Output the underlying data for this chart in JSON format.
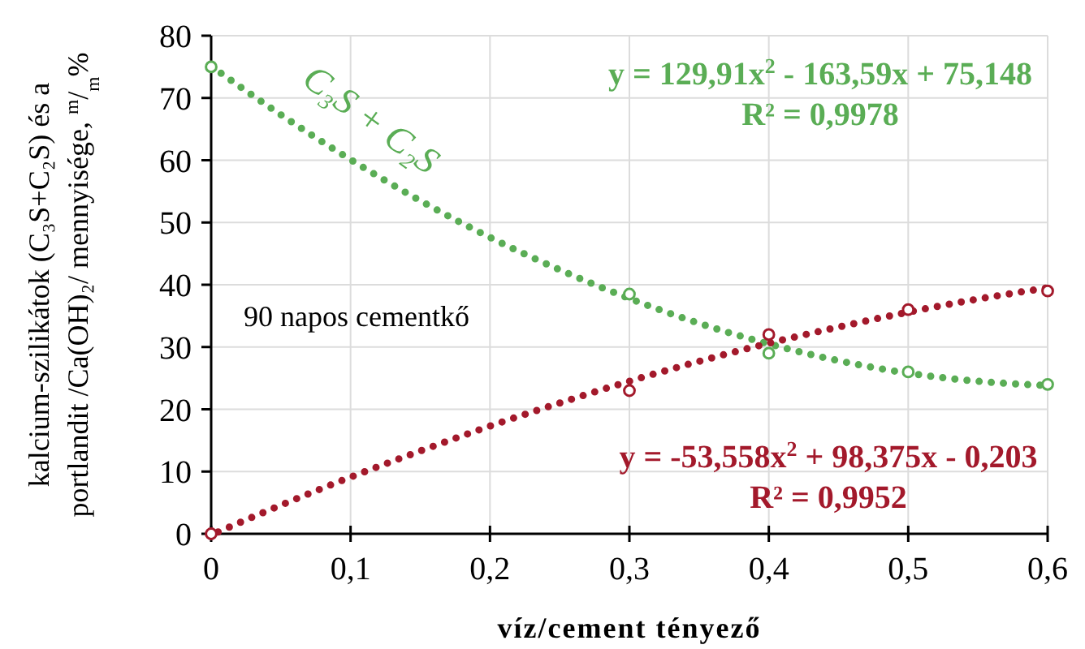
{
  "chart_data": {
    "type": "scatter",
    "xlabel": "víz/cement tényező",
    "ylabel": "kalcium-szilikátok  (C₃S+C₂S) és a\nportlandit  /Ca(OH)₂/ mennyisége, $^{m}$/$_{m}$%",
    "xlim": [
      0,
      0.6
    ],
    "xticks": [
      {
        "value": 0,
        "label": "0"
      },
      {
        "value": 0.1,
        "label": "0,1"
      },
      {
        "value": 0.2,
        "label": "0,2"
      },
      {
        "value": 0.3,
        "label": "0,3"
      },
      {
        "value": 0.4,
        "label": "0,4"
      },
      {
        "value": 0.5,
        "label": "0,5"
      },
      {
        "value": 0.6,
        "label": "0,6"
      }
    ],
    "ylim": [
      0,
      80
    ],
    "yticks": [
      0,
      10,
      20,
      30,
      40,
      50,
      60,
      70,
      80
    ],
    "grid": true,
    "series": [
      {
        "name": "C₃S + C₂S",
        "color": "#5aad55",
        "marker": "circle",
        "x": [
          0,
          0.3,
          0.4,
          0.5,
          0.6
        ],
        "values": [
          75,
          38.5,
          29,
          26,
          24
        ]
      },
      {
        "type": "line",
        "color": "#5aad55",
        "line_style": "dotted",
        "x": [
          0,
          0.05,
          0.1,
          0.15,
          0.2,
          0.25,
          0.3,
          0.35,
          0.4,
          0.45,
          0.5,
          0.55,
          0.6
        ],
        "values": [
          75.1,
          67.3,
          60.1,
          53.5,
          47.6,
          42.4,
          37.8,
          33.8,
          30.5,
          27.8,
          25.8,
          24.5,
          23.8
        ]
      },
      {
        "color": "#a3192b",
        "marker": "circle",
        "x": [
          0,
          0.3,
          0.4,
          0.5,
          0.6
        ],
        "values": [
          0,
          23,
          32,
          36,
          39
        ]
      },
      {
        "type": "line",
        "color": "#a3192b",
        "line_style": "dotted",
        "x": [
          0.005,
          0.05,
          0.1,
          0.15,
          0.2,
          0.25,
          0.3,
          0.35,
          0.4,
          0.45,
          0.5,
          0.55,
          0.6
        ],
        "values": [
          0.3,
          4.6,
          9.1,
          13.3,
          17.3,
          21.0,
          24.5,
          27.7,
          30.6,
          33.2,
          35.6,
          37.7,
          39.5
        ]
      }
    ],
    "annotations": [
      "y = 129,91x$^{2}$ - 163,59x + 75,148",
      "R² = 0,9978",
      "y = -53,558x$^{2}$ + 98,375x - 0,203",
      "R² = 0,9952",
      "90 napos cementkő"
    ]
  }
}
